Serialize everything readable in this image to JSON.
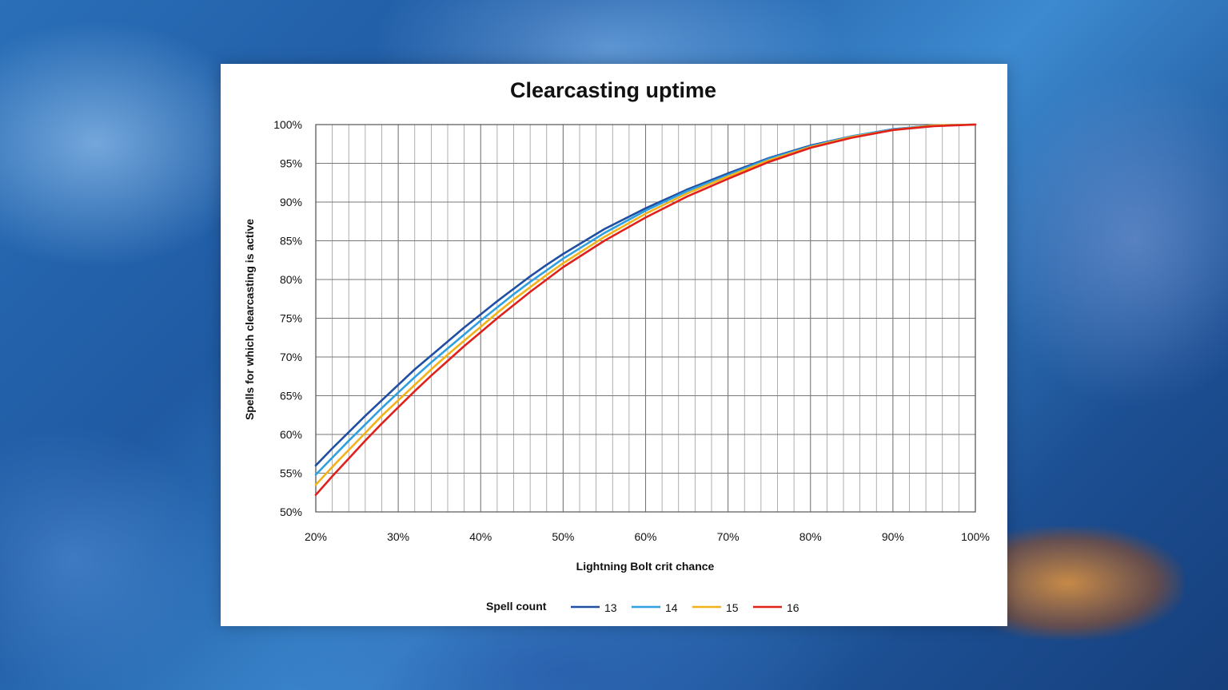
{
  "chart_data": {
    "type": "line",
    "title": "Clearcasting uptime",
    "xlabel": "Lightning Bolt crit chance",
    "ylabel": "Spells for which clearcasting is active",
    "xlim": [
      20,
      100
    ],
    "ylim": [
      50,
      100
    ],
    "x_ticks": [
      "20%",
      "30%",
      "40%",
      "50%",
      "60%",
      "70%",
      "80%",
      "90%",
      "100%"
    ],
    "y_ticks": [
      "50%",
      "55%",
      "60%",
      "65%",
      "70%",
      "75%",
      "80%",
      "85%",
      "90%",
      "95%",
      "100%"
    ],
    "grid": true,
    "legend_title": "Spell count",
    "legend_position": "bottom",
    "x": [
      20,
      22,
      24,
      26,
      28,
      30,
      32,
      34,
      36,
      38,
      40,
      42,
      44,
      46,
      48,
      50,
      55,
      60,
      65,
      70,
      75,
      80,
      85,
      90,
      95,
      100
    ],
    "series": [
      {
        "name": "13",
        "color": "#1f4ea3",
        "values": [
          56.0,
          58.2,
          60.3,
          62.4,
          64.4,
          66.4,
          68.4,
          70.2,
          72.0,
          73.8,
          75.5,
          77.2,
          78.8,
          80.4,
          81.9,
          83.3,
          86.5,
          89.2,
          91.6,
          93.7,
          95.7,
          97.3,
          98.5,
          99.4,
          99.9,
          100.0
        ]
      },
      {
        "name": "14",
        "color": "#2f9fe0",
        "values": [
          54.8,
          57.0,
          59.2,
          61.3,
          63.4,
          65.4,
          67.4,
          69.3,
          71.1,
          72.9,
          74.7,
          76.4,
          78.1,
          79.7,
          81.2,
          82.7,
          86.0,
          88.9,
          91.4,
          93.5,
          95.6,
          97.2,
          98.5,
          99.4,
          99.9,
          100.0
        ]
      },
      {
        "name": "15",
        "color": "#f2b21a",
        "values": [
          53.5,
          55.8,
          58.0,
          60.2,
          62.4,
          64.4,
          66.4,
          68.4,
          70.3,
          72.1,
          73.9,
          75.7,
          77.4,
          79.0,
          80.6,
          82.1,
          85.5,
          88.5,
          91.1,
          93.3,
          95.4,
          97.1,
          98.4,
          99.3,
          99.9,
          100.0
        ]
      },
      {
        "name": "16",
        "color": "#e0201b",
        "values": [
          52.2,
          54.6,
          56.9,
          59.2,
          61.4,
          63.5,
          65.6,
          67.6,
          69.5,
          71.4,
          73.2,
          75.0,
          76.7,
          78.4,
          80.0,
          81.6,
          85.0,
          88.0,
          90.7,
          93.0,
          95.2,
          97.0,
          98.3,
          99.3,
          99.8,
          100.0
        ]
      }
    ]
  }
}
